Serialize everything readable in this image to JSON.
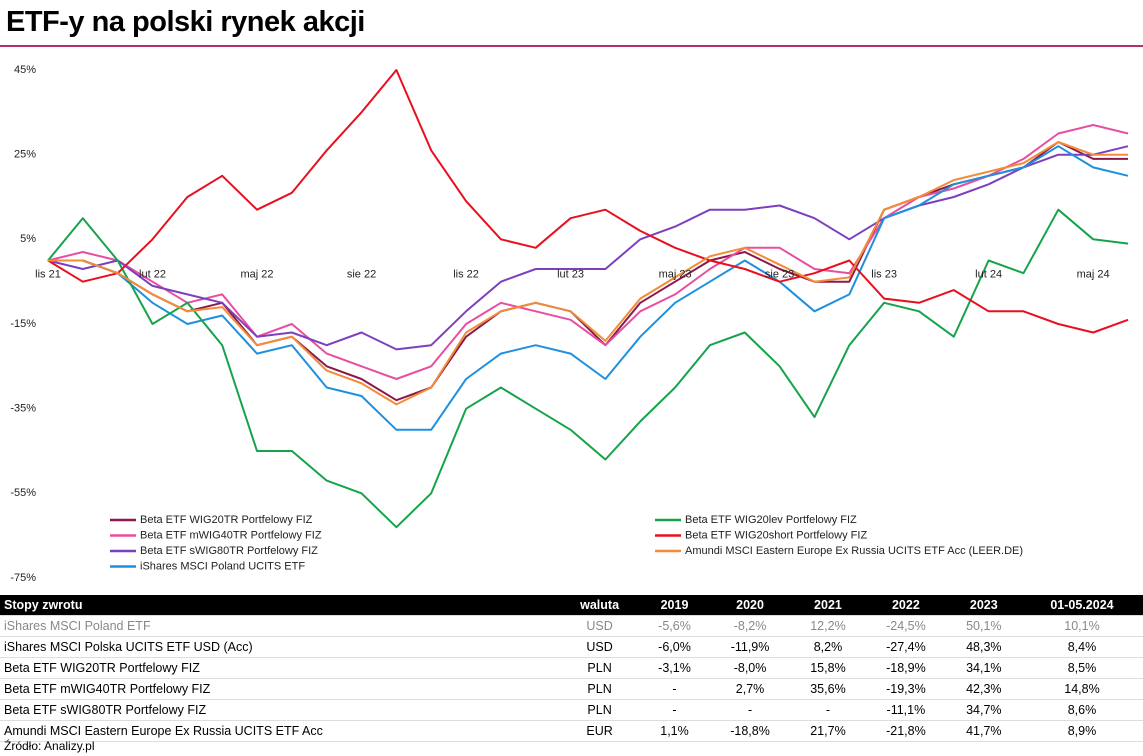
{
  "chart_data": {
    "type": "line",
    "title": "ETF-y na polski rynek akcji",
    "categories": [
      "lis 21",
      null,
      null,
      "lut 22",
      null,
      null,
      "maj 22",
      null,
      null,
      "sie 22",
      null,
      null,
      "lis 22",
      null,
      null,
      "lut 23",
      null,
      null,
      "maj 23",
      null,
      null,
      "sie 23",
      null,
      null,
      "lis 23",
      null,
      null,
      "lut 24",
      null,
      null,
      "maj 24",
      null
    ],
    "ylim": [
      -75,
      45
    ],
    "yticks": [
      {
        "value": 45,
        "label": "45%"
      },
      {
        "value": 25,
        "label": "25%"
      },
      {
        "value": 5,
        "label": "5%"
      },
      {
        "value": -15,
        "label": "-15%"
      },
      {
        "value": -35,
        "label": "-35%"
      },
      {
        "value": -55,
        "label": "-55%"
      },
      {
        "value": -75,
        "label": "-75%"
      }
    ],
    "grid": false,
    "series": [
      {
        "name": "Beta ETF WIG20TR Portfelowy FIZ",
        "color": "#8b1a4a",
        "values": [
          0,
          0,
          -3,
          -8,
          -12,
          -10,
          -20,
          -18,
          -25,
          -28,
          -33,
          -30,
          -18,
          -12,
          -10,
          -12,
          -20,
          -10,
          -5,
          0,
          2,
          -2,
          -5,
          -5,
          12,
          15,
          18,
          20,
          22,
          28,
          24,
          24
        ]
      },
      {
        "name": "Beta ETF mWIG40TR Portfelowy FIZ",
        "color": "#e84ea0",
        "values": [
          0,
          2,
          0,
          -5,
          -10,
          -8,
          -18,
          -15,
          -22,
          -25,
          -28,
          -25,
          -15,
          -10,
          -12,
          -14,
          -20,
          -12,
          -8,
          -2,
          3,
          3,
          -2,
          -3,
          10,
          15,
          17,
          20,
          24,
          30,
          32,
          30
        ]
      },
      {
        "name": "Beta ETF sWIG80TR Portfelowy FIZ",
        "color": "#7e3fbf",
        "values": [
          0,
          -2,
          0,
          -6,
          -8,
          -10,
          -18,
          -17,
          -20,
          -17,
          -21,
          -20,
          -12,
          -5,
          -2,
          -2,
          -2,
          5,
          8,
          12,
          12,
          13,
          10,
          5,
          10,
          13,
          15,
          18,
          22,
          25,
          25,
          27
        ]
      },
      {
        "name": "iShares MSCI Poland UCITS ETF",
        "color": "#1e90e0",
        "values": [
          0,
          0,
          -3,
          -10,
          -15,
          -13,
          -22,
          -20,
          -30,
          -32,
          -40,
          -40,
          -28,
          -22,
          -20,
          -22,
          -28,
          -18,
          -10,
          -5,
          0,
          -5,
          -12,
          -8,
          10,
          13,
          18,
          20,
          22,
          27,
          22,
          20
        ]
      },
      {
        "name": "Beta ETF WIG20lev Portfelowy FIZ",
        "color": "#16a34a",
        "values": [
          0,
          10,
          0,
          -15,
          -10,
          -20,
          -45,
          -45,
          -52,
          -55,
          -63,
          -55,
          -35,
          -30,
          -35,
          -40,
          -47,
          -38,
          -30,
          -20,
          -17,
          -25,
          -37,
          -20,
          -10,
          -12,
          -18,
          0,
          -3,
          12,
          5,
          4
        ]
      },
      {
        "name": "Beta ETF WIG20short Portfelowy FIZ",
        "color": "#e8101e",
        "values": [
          0,
          -5,
          -3,
          5,
          15,
          20,
          12,
          16,
          26,
          35,
          45,
          26,
          14,
          5,
          3,
          10,
          12,
          7,
          3,
          0,
          -2,
          -5,
          -3,
          0,
          -9,
          -10,
          -7,
          -12,
          -12,
          -15,
          -17,
          -14
        ]
      },
      {
        "name": "Amundi MSCI Eastern Europe Ex Russia UCITS ETF Acc (LEER.DE)",
        "color": "#f28c38",
        "values": [
          0,
          0,
          -3,
          -8,
          -12,
          -11,
          -20,
          -18,
          -26,
          -29,
          -34,
          -30,
          -17,
          -12,
          -10,
          -12,
          -19,
          -9,
          -4,
          1,
          3,
          -1,
          -5,
          -4,
          12,
          15,
          19,
          21,
          23,
          28,
          25,
          25
        ]
      }
    ]
  },
  "table": {
    "header": [
      "Stopy zwrotu",
      "waluta",
      "2019",
      "2020",
      "2021",
      "2022",
      "2023",
      "01-05.2024"
    ],
    "rows": [
      [
        "iShares MSCI Poland ETF",
        "USD",
        "-5,6%",
        "-8,2%",
        "12,2%",
        "-24,5%",
        "50,1%",
        "10,1%"
      ],
      [
        "iShares MSCI Polska UCITS ETF USD (Acc)",
        "USD",
        "-6,0%",
        "-11,9%",
        "8,2%",
        "-27,4%",
        "48,3%",
        "8,4%"
      ],
      [
        "Beta ETF WIG20TR Portfelowy FIZ",
        "PLN",
        "-3,1%",
        "-8,0%",
        "15,8%",
        "-18,9%",
        "34,1%",
        "8,5%"
      ],
      [
        "Beta ETF mWIG40TR Portfelowy FIZ",
        "PLN",
        "-",
        "2,7%",
        "35,6%",
        "-19,3%",
        "42,3%",
        "14,8%"
      ],
      [
        "Beta ETF sWIG80TR Portfelowy FIZ",
        "PLN",
        "-",
        "-",
        "-",
        "-11,1%",
        "34,7%",
        "8,6%"
      ],
      [
        "Amundi MSCI Eastern Europe Ex Russia UCITS ETF Acc",
        "EUR",
        "1,1%",
        "-18,8%",
        "21,7%",
        "-21,8%",
        "41,7%",
        "8,9%"
      ]
    ]
  },
  "source": "Źródło: Analizy.pl"
}
